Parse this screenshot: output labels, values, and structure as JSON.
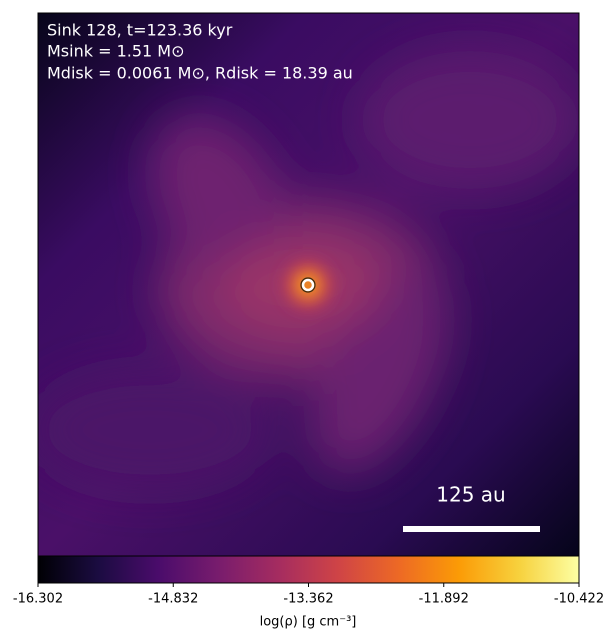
{
  "chart_data": {
    "type": "density-map",
    "annotations": [
      "Sink 128, t=123.36 kyr",
      "Msink = 1.51 M⊙",
      "Mdisk = 0.0061 M⊙, Rdisk = 18.39 au"
    ],
    "scale_bar": "125 au",
    "colorbar": {
      "colormap": "inferno",
      "label": "log(ρ) [g cm⁻³]",
      "xlim": [
        -16.302,
        -10.422
      ],
      "xticks": [
        -16.302,
        -14.832,
        -13.362,
        -11.892,
        -10.422
      ]
    }
  }
}
